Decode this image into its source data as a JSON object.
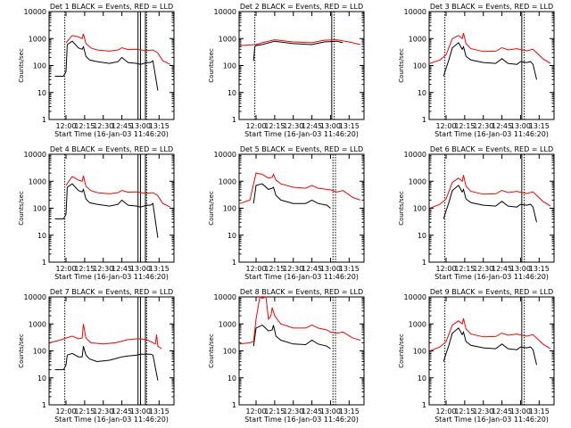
{
  "figure": {
    "xlabel": "Start Time (16-Jan-03 11:46:20)",
    "ylabel": "Counts/sec",
    "colors": {
      "events": "#000000",
      "lld": "#ff0000",
      "axes": "#000000",
      "background": "#ffffff"
    }
  },
  "chart_data": [
    {
      "type": "line",
      "title": "Det  1  BLACK = Events, RED = LLD",
      "xlabel": "Start Time (16-Jan-03 11:46:20)",
      "ylabel": "Counts/sec",
      "yscale": "log",
      "ylim": [
        1,
        10000
      ],
      "xlim": [
        "11:46:20",
        "13:27"
      ],
      "xticks": [
        "12:00",
        "12:15",
        "12:30",
        "12:45",
        "13:00",
        "13:15"
      ],
      "yticks": [
        "1",
        "10",
        "100",
        "1000",
        "10000"
      ],
      "series": [
        {
          "x": [
            "11:51",
            "11:58",
            "12:00",
            "12:01",
            "12:05",
            "12:10",
            "12:13",
            "12:14",
            "12:16",
            "12:19",
            "12:25",
            "12:35",
            "12:42",
            "12:45",
            "12:50",
            "12:57",
            "13:00",
            "13:05",
            "13:08",
            "13:10",
            "13:14"
          ],
          "y": [
            40,
            40,
            60,
            600,
            800,
            450,
            400,
            500,
            220,
            160,
            140,
            120,
            140,
            200,
            130,
            120,
            110,
            130,
            130,
            150,
            12
          ]
        },
        {
          "x": [
            "12:00",
            "12:05",
            "12:10",
            "12:13",
            "12:14",
            "12:16",
            "12:20",
            "12:25",
            "12:35",
            "12:42",
            "12:45",
            "12:50",
            "12:57",
            "13:00",
            "13:05",
            "13:10",
            "13:14",
            "13:18",
            "13:24"
          ],
          "y": [
            700,
            1300,
            1150,
            1000,
            1500,
            650,
            450,
            380,
            340,
            380,
            460,
            390,
            400,
            380,
            360,
            380,
            290,
            150,
            110
          ]
        }
      ],
      "markers": [
        "11:59",
        "12:58",
        "13:00",
        "13:04",
        "13:05"
      ]
    },
    {
      "type": "line",
      "title": "Det  2  BLACK = Events, RED = LLD",
      "xlabel": "Start Time (16-Jan-03 11:46:20)",
      "ylabel": "Counts/sec",
      "yscale": "log",
      "ylim": [
        1,
        10000
      ],
      "xlim": [
        "11:46:20",
        "13:27"
      ],
      "xticks": [
        "12:00",
        "12:15",
        "12:30",
        "12:45",
        "13:00",
        "13:15"
      ],
      "yticks": [
        "1",
        "10",
        "100",
        "1000",
        "10000"
      ],
      "series": [
        {
          "x": [
            "11:58",
            "11:59",
            "12:00",
            "12:05",
            "12:15",
            "12:30",
            "12:45",
            "12:55",
            "13:05",
            "13:10"
          ],
          "y": [
            150,
            500,
            550,
            600,
            800,
            650,
            600,
            750,
            800,
            700
          ]
        },
        {
          "x": [
            "11:47",
            "11:55",
            "12:00",
            "12:05",
            "12:15",
            "12:30",
            "12:45",
            "12:55",
            "13:05",
            "13:15",
            "13:24"
          ],
          "y": [
            550,
            580,
            600,
            700,
            900,
            750,
            700,
            870,
            900,
            750,
            600
          ]
        }
      ],
      "markers": [
        "11:59",
        "13:01",
        "13:03"
      ]
    },
    {
      "type": "line",
      "title": "Det  3  BLACK = Events, RED = LLD",
      "xlabel": "Start Time (16-Jan-03 11:46:20)",
      "ylabel": "Counts/sec",
      "yscale": "log",
      "ylim": [
        1,
        10000
      ],
      "xlim": [
        "11:46:20",
        "13:27"
      ],
      "xticks": [
        "12:00",
        "12:15",
        "12:30",
        "12:45",
        "13:00",
        "13:15"
      ],
      "yticks": [
        "1",
        "10",
        "100",
        "1000",
        "10000"
      ],
      "series": [
        {
          "x": [
            "11:58",
            "12:00",
            "12:02",
            "12:05",
            "12:10",
            "12:13",
            "12:14",
            "12:16",
            "12:20",
            "12:30",
            "12:40",
            "12:45",
            "12:50",
            "12:57",
            "13:00",
            "13:05",
            "13:08",
            "13:10",
            "13:13"
          ],
          "y": [
            40,
            80,
            150,
            450,
            700,
            400,
            500,
            220,
            160,
            130,
            120,
            180,
            120,
            110,
            140,
            130,
            140,
            110,
            30
          ]
        },
        {
          "x": [
            "11:47",
            "11:55",
            "12:00",
            "12:05",
            "12:10",
            "12:13",
            "12:14",
            "12:16",
            "12:20",
            "12:30",
            "12:40",
            "12:45",
            "12:50",
            "12:57",
            "13:00",
            "13:05",
            "13:10",
            "13:18",
            "13:24"
          ],
          "y": [
            120,
            160,
            250,
            1000,
            1300,
            1000,
            1600,
            650,
            420,
            330,
            340,
            460,
            380,
            420,
            390,
            350,
            400,
            180,
            120
          ]
        }
      ],
      "markers": [
        "11:59",
        "13:01",
        "13:03"
      ]
    },
    {
      "type": "line",
      "title": "Det  4  BLACK = Events, RED = LLD",
      "xlabel": "Start Time (16-Jan-03 11:46:20)",
      "ylabel": "Counts/sec",
      "yscale": "log",
      "ylim": [
        1,
        10000
      ],
      "xlim": [
        "11:46:20",
        "13:27"
      ],
      "xticks": [
        "12:00",
        "12:15",
        "12:30",
        "12:45",
        "13:00",
        "13:15"
      ],
      "yticks": [
        "1",
        "10",
        "100",
        "1000",
        "10000"
      ],
      "series": [
        {
          "x": [
            "11:51",
            "11:58",
            "12:00",
            "12:01",
            "12:05",
            "12:10",
            "12:13",
            "12:14",
            "12:16",
            "12:19",
            "12:25",
            "12:35",
            "12:42",
            "12:45",
            "12:50",
            "12:57",
            "13:00",
            "13:05",
            "13:08",
            "13:10",
            "13:14"
          ],
          "y": [
            40,
            40,
            60,
            600,
            800,
            450,
            400,
            500,
            220,
            160,
            140,
            120,
            140,
            200,
            130,
            120,
            110,
            130,
            130,
            150,
            8
          ]
        },
        {
          "x": [
            "12:00",
            "12:05",
            "12:10",
            "12:13",
            "12:14",
            "12:16",
            "12:20",
            "12:25",
            "12:35",
            "12:42",
            "12:45",
            "12:50",
            "12:57",
            "13:00",
            "13:05",
            "13:10",
            "13:14",
            "13:18",
            "13:24"
          ],
          "y": [
            700,
            1500,
            1100,
            1000,
            1600,
            650,
            450,
            380,
            340,
            380,
            460,
            390,
            400,
            380,
            360,
            380,
            290,
            150,
            110
          ]
        }
      ],
      "markers": [
        "11:59",
        "12:58",
        "13:00",
        "13:04",
        "13:05"
      ]
    },
    {
      "type": "line",
      "title": "Det  5  BLACK = Events, RED = LLD",
      "xlabel": "Start Time (16-Jan-03 11:46:20)",
      "ylabel": "Counts/sec",
      "yscale": "log",
      "ylim": [
        1,
        10000
      ],
      "xlim": [
        "11:46:20",
        "13:27"
      ],
      "xticks": [
        "12:00",
        "12:15",
        "12:30",
        "12:45",
        "13:00",
        "13:15"
      ],
      "yticks": [
        "1",
        "10",
        "100",
        "1000",
        "10000"
      ],
      "series": [
        {
          "x": [
            "11:58",
            "12:00",
            "12:05",
            "12:10",
            "12:13",
            "12:14",
            "12:16",
            "12:20",
            "12:30",
            "12:40",
            "12:45",
            "12:50",
            "12:57",
            "13:00"
          ],
          "y": [
            150,
            700,
            800,
            500,
            550,
            600,
            300,
            200,
            150,
            150,
            200,
            150,
            130,
            100
          ]
        },
        {
          "x": [
            "11:47",
            "11:55",
            "12:00",
            "12:05",
            "12:10",
            "12:13",
            "12:14",
            "12:16",
            "12:20",
            "12:30",
            "12:40",
            "12:45",
            "12:50",
            "12:57",
            "13:00",
            "13:05",
            "13:10",
            "13:18",
            "13:24"
          ],
          "y": [
            150,
            200,
            2000,
            1800,
            1300,
            1400,
            1800,
            1100,
            800,
            600,
            550,
            700,
            550,
            500,
            480,
            400,
            450,
            250,
            200
          ]
        }
      ],
      "markers": [
        "13:02",
        "13:04"
      ]
    },
    {
      "type": "line",
      "title": "Det  6  BLACK = Events, RED = LLD",
      "xlabel": "Start Time (16-Jan-03 11:46:20)",
      "ylabel": "Counts/sec",
      "yscale": "log",
      "ylim": [
        1,
        10000
      ],
      "xlim": [
        "11:46:20",
        "13:27"
      ],
      "xticks": [
        "12:00",
        "12:15",
        "12:30",
        "12:45",
        "13:00",
        "13:15"
      ],
      "yticks": [
        "1",
        "10",
        "100",
        "1000",
        "10000"
      ],
      "series": [
        {
          "x": [
            "11:58",
            "12:00",
            "12:02",
            "12:05",
            "12:10",
            "12:13",
            "12:14",
            "12:16",
            "12:20",
            "12:30",
            "12:40",
            "12:45",
            "12:50",
            "12:57",
            "13:00",
            "13:05",
            "13:08",
            "13:10",
            "13:13"
          ],
          "y": [
            40,
            80,
            150,
            450,
            700,
            400,
            500,
            220,
            160,
            130,
            120,
            180,
            120,
            110,
            140,
            130,
            140,
            110,
            30
          ]
        },
        {
          "x": [
            "11:47",
            "11:55",
            "12:00",
            "12:05",
            "12:10",
            "12:13",
            "12:14",
            "12:16",
            "12:20",
            "12:30",
            "12:40",
            "12:45",
            "12:50",
            "12:57",
            "13:00",
            "13:05",
            "13:10",
            "13:18",
            "13:24"
          ],
          "y": [
            100,
            140,
            220,
            900,
            1300,
            1000,
            1700,
            650,
            420,
            330,
            340,
            460,
            380,
            420,
            390,
            350,
            400,
            180,
            120
          ]
        }
      ],
      "markers": [
        "11:59",
        "13:01",
        "13:03"
      ]
    },
    {
      "type": "line",
      "title": "Det  7  BLACK = Events, RED = LLD",
      "xlabel": "Start Time (16-Jan-03 11:46:20)",
      "ylabel": "Counts/sec",
      "yscale": "log",
      "ylim": [
        1,
        10000
      ],
      "xlim": [
        "11:46:20",
        "13:27"
      ],
      "xticks": [
        "12:00",
        "12:15",
        "12:30",
        "12:45",
        "13:00",
        "13:15"
      ],
      "yticks": [
        "1",
        "10",
        "100",
        "1000",
        "10000"
      ],
      "series": [
        {
          "x": [
            "11:51",
            "11:58",
            "12:00",
            "12:01",
            "12:05",
            "12:10",
            "12:13",
            "12:14",
            "12:16",
            "12:19",
            "12:25",
            "12:35",
            "12:42",
            "12:45",
            "12:50",
            "12:57",
            "13:00",
            "13:05",
            "13:08",
            "13:10",
            "13:14"
          ],
          "y": [
            20,
            20,
            30,
            70,
            80,
            60,
            60,
            150,
            70,
            50,
            40,
            45,
            55,
            60,
            65,
            70,
            75,
            75,
            75,
            70,
            8
          ]
        },
        {
          "x": [
            "11:47",
            "11:55",
            "12:00",
            "12:05",
            "12:10",
            "12:13",
            "12:14",
            "12:16",
            "12:20",
            "12:30",
            "12:40",
            "12:45",
            "12:50",
            "12:57",
            "13:00",
            "13:05",
            "13:10",
            "13:12",
            "13:13",
            "13:14",
            "13:17"
          ],
          "y": [
            200,
            250,
            300,
            350,
            280,
            300,
            1000,
            300,
            200,
            180,
            200,
            230,
            260,
            280,
            280,
            260,
            200,
            180,
            400,
            150,
            120
          ]
        }
      ],
      "markers": [
        "11:59",
        "12:58",
        "13:00",
        "13:04",
        "13:05"
      ]
    },
    {
      "type": "line",
      "title": "Det  8  BLACK = Events, RED = LLD",
      "xlabel": "Start Time (16-Jan-03 11:46:20)",
      "ylabel": "Counts/sec",
      "yscale": "log",
      "ylim": [
        1,
        10000
      ],
      "xlim": [
        "11:46:20",
        "13:27"
      ],
      "xticks": [
        "12:00",
        "12:15",
        "12:30",
        "12:45",
        "13:00",
        "13:15"
      ],
      "yticks": [
        "1",
        "10",
        "100",
        "1000",
        "10000"
      ],
      "series": [
        {
          "x": [
            "11:58",
            "12:00",
            "12:05",
            "12:10",
            "12:13",
            "12:14",
            "12:16",
            "12:20",
            "12:30",
            "12:40",
            "12:45",
            "12:50",
            "12:57",
            "13:00"
          ],
          "y": [
            150,
            700,
            900,
            550,
            600,
            900,
            350,
            250,
            180,
            170,
            250,
            180,
            150,
            120
          ]
        },
        {
          "x": [
            "11:47",
            "11:55",
            "11:58",
            "12:00",
            "12:03",
            "12:05",
            "12:08",
            "12:10",
            "12:12",
            "12:13",
            "12:15",
            "12:18",
            "12:20",
            "12:30",
            "12:40",
            "12:45",
            "12:50",
            "12:57",
            "13:00",
            "13:05",
            "13:10",
            "13:18",
            "13:24"
          ],
          "y": [
            180,
            200,
            220,
            1500,
            10000,
            9000,
            10000,
            1500,
            2000,
            4000,
            2000,
            1300,
            1000,
            700,
            700,
            900,
            700,
            600,
            500,
            450,
            500,
            300,
            250
          ]
        }
      ],
      "markers": [
        "13:02",
        "13:04"
      ]
    },
    {
      "type": "line",
      "title": "Det  9  BLACK = Events, RED = LLD",
      "xlabel": "Start Time (16-Jan-03 11:46:20)",
      "ylabel": "Counts/sec",
      "yscale": "log",
      "ylim": [
        1,
        10000
      ],
      "xlim": [
        "11:46:20",
        "13:27"
      ],
      "xticks": [
        "12:00",
        "12:15",
        "12:30",
        "12:45",
        "13:00",
        "13:15"
      ],
      "yticks": [
        "1",
        "10",
        "100",
        "1000",
        "10000"
      ],
      "series": [
        {
          "x": [
            "11:58",
            "12:00",
            "12:02",
            "12:05",
            "12:10",
            "12:13",
            "12:14",
            "12:16",
            "12:20",
            "12:30",
            "12:40",
            "12:45",
            "12:50",
            "12:57",
            "13:00",
            "13:05",
            "13:08",
            "13:10",
            "13:13"
          ],
          "y": [
            40,
            80,
            150,
            450,
            700,
            400,
            500,
            220,
            160,
            130,
            120,
            180,
            120,
            110,
            140,
            130,
            140,
            110,
            30
          ]
        },
        {
          "x": [
            "11:47",
            "11:55",
            "12:00",
            "12:05",
            "12:10",
            "12:13",
            "12:14",
            "12:16",
            "12:20",
            "12:30",
            "12:40",
            "12:45",
            "12:50",
            "12:57",
            "13:00",
            "13:05",
            "13:10",
            "13:18",
            "13:24"
          ],
          "y": [
            100,
            140,
            220,
            900,
            1300,
            1000,
            1600,
            650,
            420,
            330,
            340,
            460,
            380,
            420,
            390,
            350,
            400,
            180,
            120
          ]
        }
      ],
      "markers": [
        "11:59",
        "13:01",
        "13:03"
      ]
    }
  ]
}
